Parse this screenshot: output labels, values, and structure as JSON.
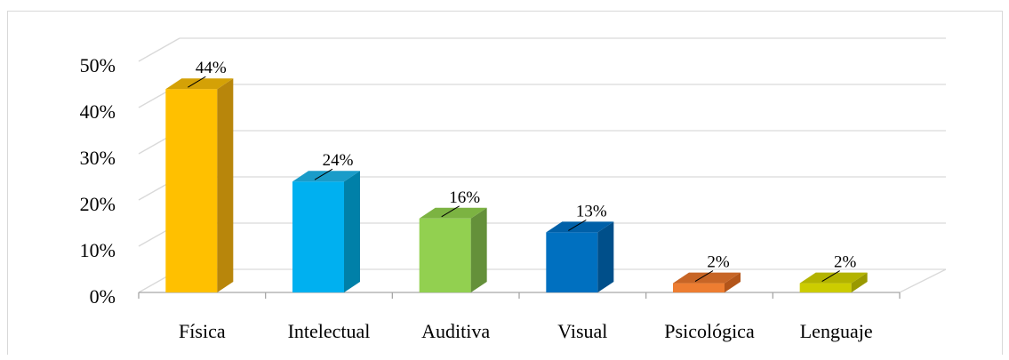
{
  "chart_data": {
    "type": "bar",
    "title": "",
    "xlabel": "",
    "ylabel": "",
    "categories": [
      "Física",
      "Intelectual",
      "Auditiva",
      "Visual",
      "Psicológica",
      "Lenguaje"
    ],
    "values": [
      44,
      24,
      16,
      13,
      2,
      2
    ],
    "data_labels": [
      "44%",
      "24%",
      "16%",
      "13%",
      "2%",
      "2%"
    ],
    "yticks": [
      "0%",
      "10%",
      "20%",
      "30%",
      "40%",
      "50%"
    ],
    "ylim": [
      0,
      50
    ],
    "grid": true,
    "legend": "none",
    "colors": {
      "front": [
        "#ffc000",
        "#00b0f0",
        "#92d050",
        "#0070c0",
        "#ed7d31",
        "#cccc00"
      ],
      "side": [
        "#b8860b",
        "#0080a8",
        "#64903a",
        "#004f8a",
        "#b3551a",
        "#999900"
      ],
      "top": [
        "#d4a106",
        "#1a9cc9",
        "#7cb342",
        "#0060a8",
        "#c76526",
        "#b3b300"
      ],
      "grid": "#d9d9d9"
    }
  }
}
